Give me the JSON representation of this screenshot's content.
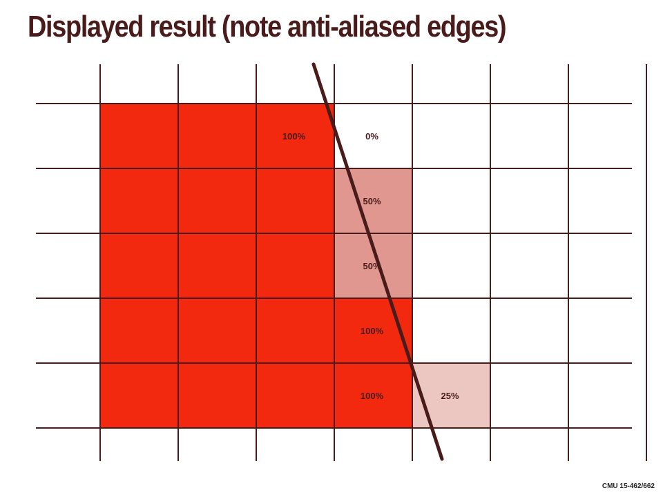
{
  "title": "Displayed result (note anti-aliased edges)",
  "footer": "CMU 15-462/662",
  "colors": {
    "full": "#f2280f",
    "half": "#e0978f",
    "quarter": "#ecc7c2",
    "grid": "#4a1b1b",
    "edge_line": "#4a1b1b"
  },
  "grid": {
    "columns": 8,
    "rows": 5
  },
  "cells": [
    {
      "row": 0,
      "col": 0,
      "coverage": 1.0,
      "label": ""
    },
    {
      "row": 0,
      "col": 1,
      "coverage": 1.0,
      "label": ""
    },
    {
      "row": 0,
      "col": 2,
      "coverage": 1.0,
      "label": "100%"
    },
    {
      "row": 0,
      "col": 3,
      "coverage": 0.0,
      "label": "0%"
    },
    {
      "row": 1,
      "col": 0,
      "coverage": 1.0,
      "label": ""
    },
    {
      "row": 1,
      "col": 1,
      "coverage": 1.0,
      "label": ""
    },
    {
      "row": 1,
      "col": 2,
      "coverage": 1.0,
      "label": ""
    },
    {
      "row": 1,
      "col": 3,
      "coverage": 0.5,
      "label": "50%"
    },
    {
      "row": 2,
      "col": 0,
      "coverage": 1.0,
      "label": ""
    },
    {
      "row": 2,
      "col": 1,
      "coverage": 1.0,
      "label": ""
    },
    {
      "row": 2,
      "col": 2,
      "coverage": 1.0,
      "label": ""
    },
    {
      "row": 2,
      "col": 3,
      "coverage": 0.5,
      "label": "50%"
    },
    {
      "row": 3,
      "col": 0,
      "coverage": 1.0,
      "label": ""
    },
    {
      "row": 3,
      "col": 1,
      "coverage": 1.0,
      "label": ""
    },
    {
      "row": 3,
      "col": 2,
      "coverage": 1.0,
      "label": ""
    },
    {
      "row": 3,
      "col": 3,
      "coverage": 1.0,
      "label": "100%"
    },
    {
      "row": 4,
      "col": 0,
      "coverage": 1.0,
      "label": ""
    },
    {
      "row": 4,
      "col": 1,
      "coverage": 1.0,
      "label": ""
    },
    {
      "row": 4,
      "col": 2,
      "coverage": 1.0,
      "label": ""
    },
    {
      "row": 4,
      "col": 3,
      "coverage": 1.0,
      "label": "100%"
    },
    {
      "row": 4,
      "col": 4,
      "coverage": 0.25,
      "label": "25%"
    }
  ]
}
